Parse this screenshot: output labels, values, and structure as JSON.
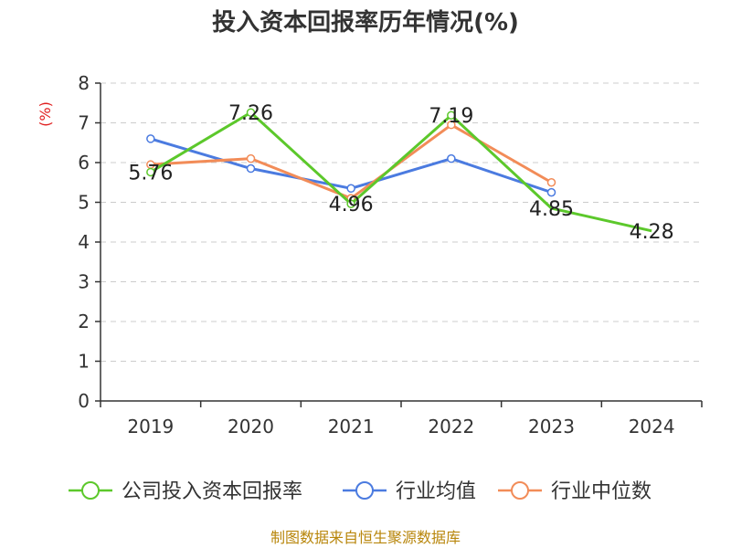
{
  "chart_data": {
    "type": "line",
    "title": "投入资本回报率历年情况(%)",
    "xlabel": "",
    "ylabel": "(%)",
    "categories": [
      "2019",
      "2020",
      "2021",
      "2022",
      "2023",
      "2024"
    ],
    "ylim": [
      0,
      8
    ],
    "yticks": [
      0,
      1,
      2,
      3,
      4,
      5,
      6,
      7,
      8
    ],
    "grid": true,
    "legend_position": "bottom",
    "series": [
      {
        "name": "公司投入资本回报率",
        "color": "#5cc82b",
        "values": [
          5.76,
          7.26,
          4.96,
          7.19,
          4.85,
          4.28
        ],
        "labels": [
          "5.76",
          "7.26",
          "4.96",
          "7.19",
          "4.85",
          "4.28"
        ],
        "show_markers": [
          true,
          true,
          true,
          true,
          false,
          false
        ]
      },
      {
        "name": "行业均值",
        "color": "#4b7be0",
        "values": [
          6.6,
          5.85,
          5.35,
          6.1,
          5.25,
          null
        ]
      },
      {
        "name": "行业中位数",
        "color": "#f28c58",
        "values": [
          5.95,
          6.1,
          5.1,
          6.95,
          5.5,
          null
        ]
      }
    ]
  },
  "source": "制图数据来自恒生聚源数据库",
  "colors": {
    "axis": "#333333",
    "grid": "#cccccc",
    "ylabel": "#e02020",
    "source": "#b8860b"
  }
}
